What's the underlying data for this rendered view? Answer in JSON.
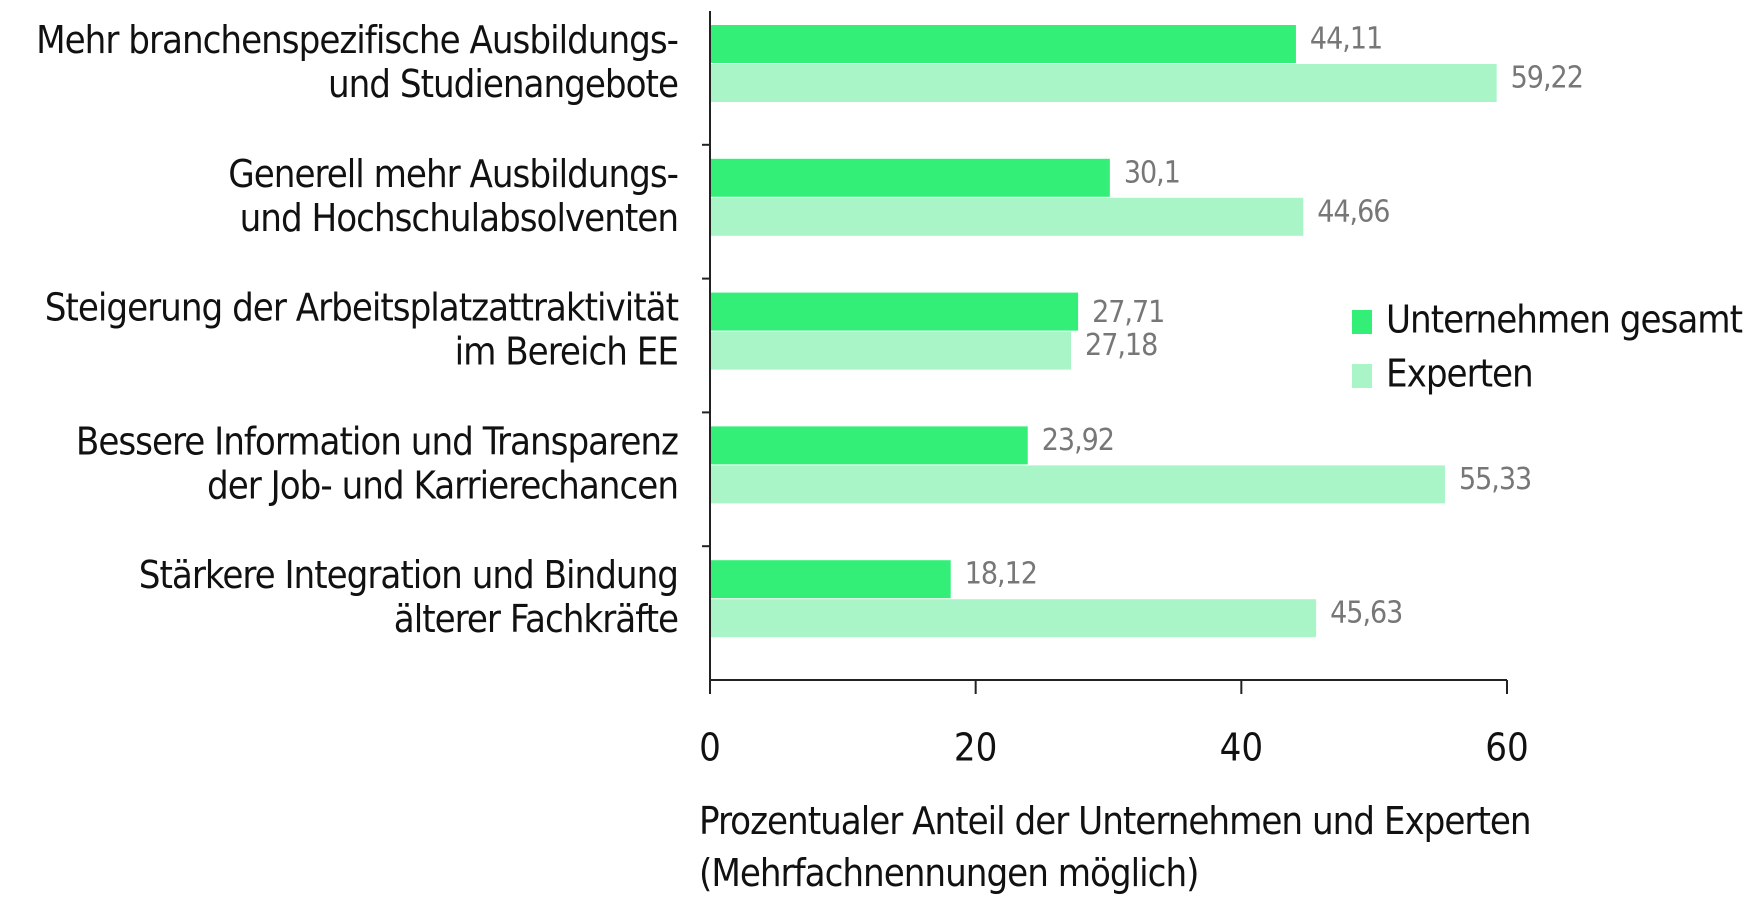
{
  "chart_data": {
    "type": "hbar",
    "categories": [
      "Mehr branchenspezifische Ausbildungs-\nund Studienangebote",
      "Generell mehr Ausbildungs-\nund Hochschulabsolventen",
      "Steigerung der Arbeitsplatzattraktivität\nim Bereich EE",
      "Bessere Information und Transparenz\nder Job- und Karrierechancen",
      "Stärkere Integration und Bindung\nälterer Fachkräfte"
    ],
    "series": [
      {
        "name": "Unternehmen gesamt",
        "color": "#33ee77",
        "values": [
          44.11,
          30.1,
          27.71,
          23.92,
          18.12
        ],
        "value_labels": [
          "44,11",
          "30,1",
          "27,71",
          "23,92",
          "18,12"
        ]
      },
      {
        "name": "Experten",
        "color": "#aaf5c8",
        "values": [
          59.22,
          44.66,
          27.18,
          55.33,
          45.63
        ],
        "value_labels": [
          "59,22",
          "44,66",
          "27,18",
          "55,33",
          "45,63"
        ]
      }
    ],
    "xlabel": "Prozentualer Anteil der Unternehmen und Experten\n(Mehrfachnennungen möglich)",
    "xlim": [
      0,
      60
    ],
    "xticks": [
      0,
      20,
      40,
      60
    ],
    "legend": "right"
  }
}
